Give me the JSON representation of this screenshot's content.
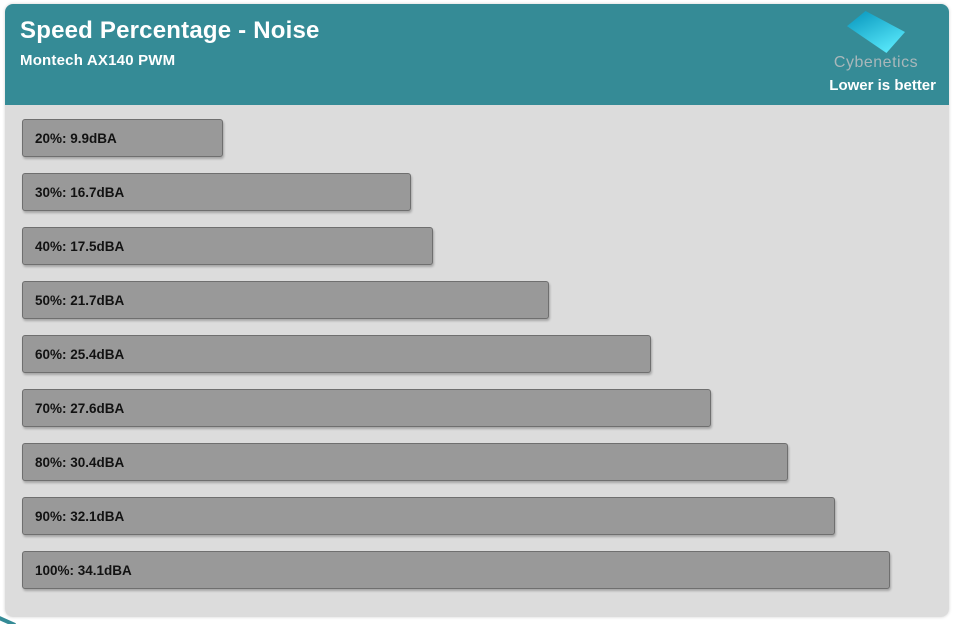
{
  "header": {
    "title": "Speed Percentage - Noise",
    "subtitle": "Montech AX140 PWM",
    "brand": "Cybenetics",
    "note": "Lower is better"
  },
  "colors": {
    "header_bg": "#358b96",
    "chart_bg": "#dcdcdc",
    "bar_fill": "#999999",
    "bar_border": "#6f6f6f",
    "logo_dark": "#13a2c6",
    "logo_light": "#55e5f8",
    "brand_text": "#a9b7ba"
  },
  "chart_data": {
    "type": "bar",
    "orientation": "horizontal",
    "title": "Speed Percentage - Noise",
    "subtitle": "Montech AX140 PWM",
    "unit": "dBA",
    "note": "Lower is better",
    "categories": [
      "20%",
      "30%",
      "40%",
      "50%",
      "60%",
      "70%",
      "80%",
      "90%",
      "100%"
    ],
    "values": [
      9.9,
      16.7,
      17.5,
      21.7,
      25.4,
      27.6,
      30.4,
      32.1,
      34.1
    ],
    "labels": [
      "20%: 9.9dBA",
      "30%: 16.7dBA",
      "40%: 17.5dBA",
      "50%: 21.7dBA",
      "60%: 25.4dBA",
      "70%: 27.6dBA",
      "80%: 30.4dBA",
      "90%: 32.1dBA",
      "100%: 34.1dBA"
    ],
    "xlim": [
      2.6,
      35.9
    ],
    "value_axis_visible": false,
    "grid": false,
    "legend": false
  }
}
